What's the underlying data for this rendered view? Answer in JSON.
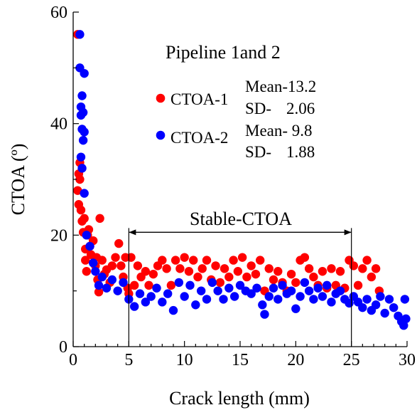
{
  "chart_data": {
    "type": "scatter",
    "title": "Pipeline 1and 2",
    "xlabel": "Crack length (mm)",
    "ylabel": "CTOA (º)",
    "xlim": [
      0,
      30
    ],
    "ylim": [
      0,
      60
    ],
    "xticks": [
      "0",
      "5",
      "10",
      "15",
      "20",
      "25",
      "30"
    ],
    "yticks": [
      "0",
      "20",
      "40",
      "60"
    ],
    "grid": false,
    "legend_position": "upper-center",
    "annotation": {
      "label": "Stable-CTOA",
      "x_start": 5,
      "x_end": 25,
      "y": 20
    },
    "colors": {
      "ctoa1": "#ff0000",
      "ctoa2": "#0000ff",
      "axis": "#000000"
    },
    "series": [
      {
        "name": "CTOA-1",
        "stats": {
          "mean_label": "Mean-13.2",
          "sd_label": "SD-",
          "sd_value": "2.06"
        },
        "points": [
          [
            0.4,
            56
          ],
          [
            0.4,
            28
          ],
          [
            0.5,
            25.5
          ],
          [
            0.5,
            31
          ],
          [
            0.6,
            33
          ],
          [
            0.6,
            30
          ],
          [
            0.7,
            24.5
          ],
          [
            0.8,
            22.5
          ],
          [
            0.9,
            20.5
          ],
          [
            1.0,
            23
          ],
          [
            1.1,
            17.5
          ],
          [
            1.1,
            15.5
          ],
          [
            1.2,
            13.5
          ],
          [
            1.3,
            20
          ],
          [
            1.4,
            21
          ],
          [
            1.5,
            18
          ],
          [
            1.6,
            16.5
          ],
          [
            1.8,
            19
          ],
          [
            2.0,
            14.5
          ],
          [
            2.1,
            16
          ],
          [
            2.2,
            12
          ],
          [
            2.3,
            9.8
          ],
          [
            2.4,
            23
          ],
          [
            2.6,
            15.5
          ],
          [
            2.8,
            13
          ],
          [
            3.0,
            13.8
          ],
          [
            3.3,
            11.5
          ],
          [
            3.5,
            14.5
          ],
          [
            3.8,
            16
          ],
          [
            4.1,
            18.5
          ],
          [
            4.3,
            14.5
          ],
          [
            4.5,
            12.5
          ],
          [
            4.7,
            16
          ],
          [
            4.9,
            10.5
          ],
          [
            5.0,
            9.5
          ],
          [
            5.2,
            16
          ],
          [
            5.5,
            11
          ],
          [
            5.8,
            14.5
          ],
          [
            6.1,
            12.5
          ],
          [
            6.5,
            13.5
          ],
          [
            6.8,
            11
          ],
          [
            7.2,
            13
          ],
          [
            7.6,
            14.5
          ],
          [
            8.0,
            15.5
          ],
          [
            8.4,
            14
          ],
          [
            8.8,
            11
          ],
          [
            9.2,
            15.5
          ],
          [
            9.6,
            14
          ],
          [
            10.0,
            16
          ],
          [
            10.4,
            13.5
          ],
          [
            10.8,
            15.5
          ],
          [
            11.2,
            12.5
          ],
          [
            11.6,
            14
          ],
          [
            12.0,
            15.5
          ],
          [
            12.4,
            12
          ],
          [
            12.8,
            14.5
          ],
          [
            13.2,
            11.5
          ],
          [
            13.6,
            14
          ],
          [
            14.0,
            12.5
          ],
          [
            14.4,
            15.5
          ],
          [
            14.8,
            13.5
          ],
          [
            15.2,
            16
          ],
          [
            15.6,
            12.5
          ],
          [
            16.0,
            14.5
          ],
          [
            16.4,
            13
          ],
          [
            16.8,
            15.5
          ],
          [
            17.2,
            10
          ],
          [
            17.6,
            14
          ],
          [
            18.0,
            12
          ],
          [
            18.4,
            13.5
          ],
          [
            18.8,
            11.5
          ],
          [
            19.2,
            10
          ],
          [
            19.6,
            13
          ],
          [
            20.0,
            11.5
          ],
          [
            20.4,
            15.5
          ],
          [
            20.8,
            16
          ],
          [
            21.2,
            14
          ],
          [
            21.6,
            12.5
          ],
          [
            22.0,
            11
          ],
          [
            22.4,
            13.5
          ],
          [
            22.8,
            10.5
          ],
          [
            23.2,
            14
          ],
          [
            23.6,
            11
          ],
          [
            24.0,
            13.5
          ],
          [
            24.4,
            10.5
          ],
          [
            24.8,
            15.5
          ],
          [
            25.2,
            14.5
          ],
          [
            25.6,
            11
          ],
          [
            26.0,
            14
          ],
          [
            26.4,
            15.5
          ],
          [
            26.8,
            12.5
          ],
          [
            27.2,
            14
          ],
          [
            27.5,
            10
          ]
        ]
      },
      {
        "name": "CTOA-2",
        "stats": {
          "mean_label": "Mean- 9.8",
          "sd_label": "SD-",
          "sd_value": "1.88"
        },
        "points": [
          [
            0.6,
            56
          ],
          [
            0.6,
            50
          ],
          [
            0.7,
            43
          ],
          [
            0.7,
            41.5
          ],
          [
            0.8,
            45
          ],
          [
            0.8,
            39
          ],
          [
            0.9,
            42
          ],
          [
            0.9,
            37
          ],
          [
            1.0,
            49
          ],
          [
            1.0,
            38.5
          ],
          [
            0.7,
            34
          ],
          [
            0.8,
            32
          ],
          [
            1.0,
            27.5
          ],
          [
            1.2,
            20
          ],
          [
            1.5,
            18
          ],
          [
            1.8,
            15
          ],
          [
            2.0,
            13.5
          ],
          [
            2.3,
            11
          ],
          [
            2.6,
            12.5
          ],
          [
            3.0,
            10.5
          ],
          [
            3.5,
            12
          ],
          [
            4.0,
            10
          ],
          [
            4.5,
            11.5
          ],
          [
            5.0,
            8.5
          ],
          [
            5.5,
            7.2
          ],
          [
            6.0,
            9.5
          ],
          [
            6.5,
            8
          ],
          [
            7.0,
            9
          ],
          [
            7.5,
            10.5
          ],
          [
            8.0,
            8
          ],
          [
            8.5,
            9.5
          ],
          [
            9.0,
            6.5
          ],
          [
            9.5,
            11.5
          ],
          [
            10.0,
            9
          ],
          [
            10.5,
            11
          ],
          [
            11.0,
            7.5
          ],
          [
            11.5,
            10
          ],
          [
            12.0,
            8.5
          ],
          [
            12.5,
            11.5
          ],
          [
            13.0,
            10
          ],
          [
            13.5,
            8.5
          ],
          [
            14.0,
            10.5
          ],
          [
            14.5,
            9
          ],
          [
            15.0,
            11
          ],
          [
            15.5,
            10
          ],
          [
            16.0,
            9.5
          ],
          [
            16.5,
            10.5
          ],
          [
            17.0,
            7.5
          ],
          [
            17.2,
            5.8
          ],
          [
            17.6,
            9
          ],
          [
            18.0,
            10.5
          ],
          [
            18.4,
            8.5
          ],
          [
            18.8,
            11
          ],
          [
            19.2,
            9.5
          ],
          [
            19.6,
            10
          ],
          [
            20.0,
            6.8
          ],
          [
            20.4,
            9
          ],
          [
            20.8,
            11.5
          ],
          [
            21.2,
            10
          ],
          [
            21.6,
            8.5
          ],
          [
            22.0,
            10.5
          ],
          [
            22.4,
            9
          ],
          [
            22.8,
            11
          ],
          [
            23.2,
            8
          ],
          [
            23.6,
            9.5
          ],
          [
            24.0,
            10
          ],
          [
            24.4,
            8.5
          ],
          [
            24.8,
            7.8
          ],
          [
            25.2,
            9
          ],
          [
            25.6,
            8
          ],
          [
            26.0,
            7
          ],
          [
            26.4,
            8.5
          ],
          [
            26.8,
            6.5
          ],
          [
            27.2,
            7.5
          ],
          [
            27.6,
            9
          ],
          [
            28.0,
            6
          ],
          [
            28.4,
            8.5
          ],
          [
            28.8,
            7
          ],
          [
            29.2,
            5.5
          ],
          [
            29.5,
            4.5
          ],
          [
            29.7,
            3.8
          ],
          [
            29.8,
            8.5
          ],
          [
            29.9,
            5
          ]
        ]
      }
    ]
  }
}
